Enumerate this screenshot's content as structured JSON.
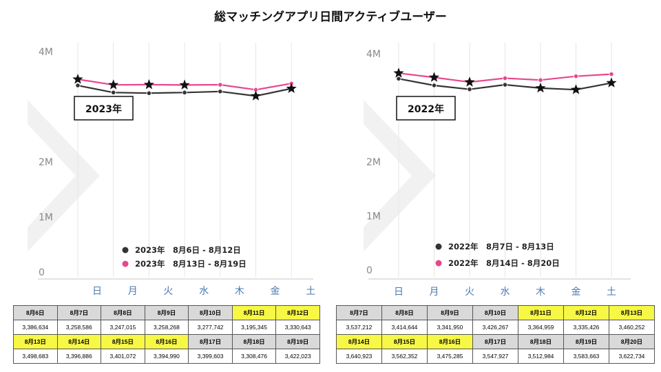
{
  "title": "総マッチングアプリ日間アクティブユーザー",
  "colors": {
    "series_2023a": "#333333",
    "series_2023b": "#e8468c",
    "series_2022a": "#333333",
    "series_2022b": "#e8468c",
    "highlight": "#f7f746",
    "header": "#d9d9d9",
    "day_label": "#4a7ab0",
    "grid": "#e6e6e6"
  },
  "chart_data": [
    {
      "type": "line",
      "badge": "2023年",
      "categories": [
        "日",
        "月",
        "火",
        "水",
        "木",
        "金",
        "土"
      ],
      "yticks": [
        {
          "value": 0,
          "label": "0"
        },
        {
          "value": 1000000,
          "label": "1M"
        },
        {
          "value": 2000000,
          "label": "2M"
        },
        {
          "value": 4000000,
          "label": "4M"
        }
      ],
      "ylim": [
        0,
        4000000
      ],
      "series": [
        {
          "name": "2023年　8月6日 - 8月12日",
          "color": "#333333",
          "values": [
            3386634,
            3258586,
            3247015,
            3258268,
            3277742,
            3195345,
            3330643
          ]
        },
        {
          "name": "2023年　8月13日 - 8月19日",
          "color": "#e8468c",
          "values": [
            3498683,
            3396886,
            3401072,
            3394990,
            3399603,
            3308476,
            3422023
          ]
        }
      ],
      "stars": [
        {
          "series": 1,
          "index": 0
        },
        {
          "series": 1,
          "index": 1
        },
        {
          "series": 1,
          "index": 2
        },
        {
          "series": 1,
          "index": 3
        },
        {
          "series": 0,
          "index": 5
        },
        {
          "series": 0,
          "index": 6
        }
      ]
    },
    {
      "type": "line",
      "badge": "2022年",
      "categories": [
        "日",
        "月",
        "火",
        "水",
        "木",
        "金",
        "土"
      ],
      "yticks": [
        {
          "value": 0,
          "label": "0"
        },
        {
          "value": 1000000,
          "label": "1M"
        },
        {
          "value": 2000000,
          "label": "2M"
        },
        {
          "value": 4000000,
          "label": "4M"
        }
      ],
      "ylim": [
        0,
        4000000
      ],
      "series": [
        {
          "name": "2022年　8月7日 - 8月13日",
          "color": "#333333",
          "values": [
            3537212,
            3414644,
            3341950,
            3426267,
            3364959,
            3335426,
            3460252
          ]
        },
        {
          "name": "2022年　8月14日 - 8月20日",
          "color": "#e8468c",
          "values": [
            3640923,
            3562352,
            3475285,
            3547927,
            3512984,
            3583663,
            3622734
          ]
        }
      ],
      "stars": [
        {
          "series": 1,
          "index": 0
        },
        {
          "series": 1,
          "index": 1
        },
        {
          "series": 1,
          "index": 2
        },
        {
          "series": 0,
          "index": 4
        },
        {
          "series": 0,
          "index": 5
        },
        {
          "series": 0,
          "index": 6
        }
      ]
    }
  ],
  "tables": [
    {
      "rows": [
        {
          "cells": [
            {
              "date": "8月6日",
              "value": "3,386,634",
              "highlight": false
            },
            {
              "date": "8月7日",
              "value": "3,258,586",
              "highlight": false
            },
            {
              "date": "8月8日",
              "value": "3,247,015",
              "highlight": false
            },
            {
              "date": "8月9日",
              "value": "3,258,268",
              "highlight": false
            },
            {
              "date": "8月10日",
              "value": "3,277,742",
              "highlight": false
            },
            {
              "date": "8月11日",
              "value": "3,195,345",
              "highlight": true
            },
            {
              "date": "8月12日",
              "value": "3,330,643",
              "highlight": true
            }
          ]
        },
        {
          "cells": [
            {
              "date": "8月13日",
              "value": "3,498,683",
              "highlight": true
            },
            {
              "date": "8月14日",
              "value": "3,396,886",
              "highlight": true
            },
            {
              "date": "8月15日",
              "value": "3,401,072",
              "highlight": true
            },
            {
              "date": "8月16日",
              "value": "3,394,990",
              "highlight": true
            },
            {
              "date": "8月17日",
              "value": "3,399,603",
              "highlight": false
            },
            {
              "date": "8月18日",
              "value": "3,308,476",
              "highlight": false
            },
            {
              "date": "8月19日",
              "value": "3,422,023",
              "highlight": false
            }
          ]
        }
      ]
    },
    {
      "rows": [
        {
          "cells": [
            {
              "date": "8月7日",
              "value": "3,537,212",
              "highlight": false
            },
            {
              "date": "8月8日",
              "value": "3,414,644",
              "highlight": false
            },
            {
              "date": "8月9日",
              "value": "3,341,950",
              "highlight": false
            },
            {
              "date": "8月10日",
              "value": "3,426,267",
              "highlight": false
            },
            {
              "date": "8月11日",
              "value": "3,364,959",
              "highlight": true
            },
            {
              "date": "8月12日",
              "value": "3,335,426",
              "highlight": true
            },
            {
              "date": "8月13日",
              "value": "3,460,252",
              "highlight": true
            }
          ]
        },
        {
          "cells": [
            {
              "date": "8月14日",
              "value": "3,640,923",
              "highlight": true
            },
            {
              "date": "8月15日",
              "value": "3,562,352",
              "highlight": true
            },
            {
              "date": "8月16日",
              "value": "3,475,285",
              "highlight": true
            },
            {
              "date": "8月17日",
              "value": "3,547,927",
              "highlight": false
            },
            {
              "date": "8月18日",
              "value": "3,512,984",
              "highlight": false
            },
            {
              "date": "8月19日",
              "value": "3,583,663",
              "highlight": false
            },
            {
              "date": "8月20日",
              "value": "3,622,734",
              "highlight": false
            }
          ]
        }
      ]
    }
  ]
}
